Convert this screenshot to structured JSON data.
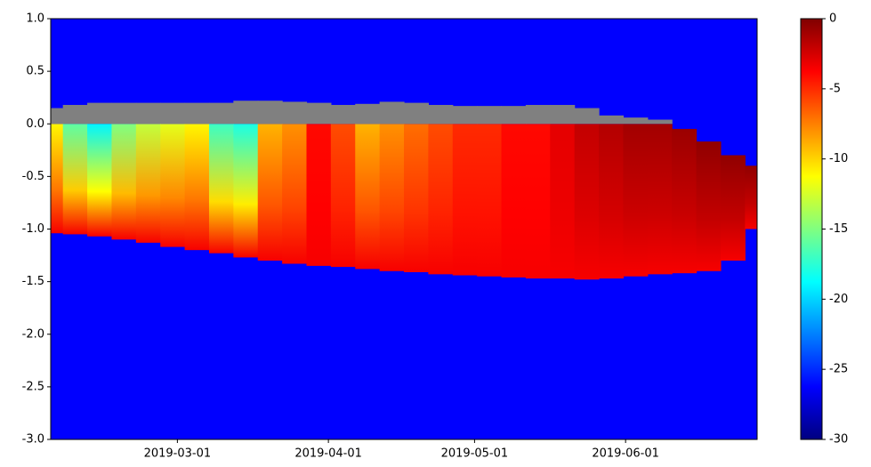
{
  "chart_data": {
    "type": "heatmap",
    "x": [
      "2019-02-03",
      "2019-02-08",
      "2019-02-13",
      "2019-02-18",
      "2019-02-23",
      "2019-02-28",
      "2019-03-05",
      "2019-03-10",
      "2019-03-15",
      "2019-03-20",
      "2019-03-25",
      "2019-03-30",
      "2019-04-04",
      "2019-04-09",
      "2019-04-14",
      "2019-04-19",
      "2019-04-24",
      "2019-04-29",
      "2019-05-04",
      "2019-05-09",
      "2019-05-14",
      "2019-05-19",
      "2019-05-24",
      "2019-05-29",
      "2019-06-03",
      "2019-06-08",
      "2019-06-13",
      "2019-06-18",
      "2019-06-23",
      "2019-06-28"
    ],
    "surface": [
      0.15,
      0.18,
      0.2,
      0.2,
      0.2,
      0.2,
      0.2,
      0.2,
      0.22,
      0.22,
      0.21,
      0.2,
      0.18,
      0.19,
      0.21,
      0.2,
      0.18,
      0.17,
      0.17,
      0.17,
      0.18,
      0.18,
      0.15,
      0.08,
      0.06,
      0.04,
      -0.05,
      -0.17,
      -0.3,
      -0.4
    ],
    "ice_base": [
      -1.04,
      -1.05,
      -1.07,
      -1.1,
      -1.13,
      -1.17,
      -1.2,
      -1.23,
      -1.27,
      -1.3,
      -1.33,
      -1.35,
      -1.36,
      -1.38,
      -1.4,
      -1.41,
      -1.43,
      -1.44,
      -1.45,
      -1.46,
      -1.47,
      -1.47,
      -1.48,
      -1.47,
      -1.45,
      -1.43,
      -1.42,
      -1.4,
      -1.3,
      -1.0
    ],
    "surface_temperature": [
      -11,
      -16,
      -19,
      -15,
      -13,
      -12,
      -11,
      -17,
      -18,
      -9,
      -8,
      -4,
      -6,
      -9,
      -8,
      -7,
      -6,
      -5,
      -5,
      -4,
      -4,
      -3,
      -2,
      -1.5,
      -1,
      -1,
      -0.8,
      -0.5,
      -0.5,
      -0.5
    ],
    "base_temperature": -3.5,
    "snow_color": "#808080",
    "water_color": "#0000ff",
    "xlim": [
      "2019-02-03",
      "2019-06-28"
    ],
    "xticks": [
      "2019-03-01",
      "2019-04-01",
      "2019-05-01",
      "2019-06-01"
    ],
    "ylim": [
      -3,
      1
    ],
    "yticks": [
      {
        "value": -3,
        "label": "-3.0"
      },
      -2.5,
      {
        "value": -2,
        "label": "-2.0"
      },
      -1.5,
      {
        "value": -1,
        "label": "-1.0"
      },
      -0.5,
      {
        "value": 0,
        "label": "0.0"
      },
      0.5,
      {
        "value": 1,
        "label": "1.0"
      }
    ],
    "clim": [
      -30,
      0
    ],
    "cticks": [
      -30,
      -25,
      -20,
      -15,
      -10,
      -5,
      0
    ],
    "colormap": "jet"
  }
}
